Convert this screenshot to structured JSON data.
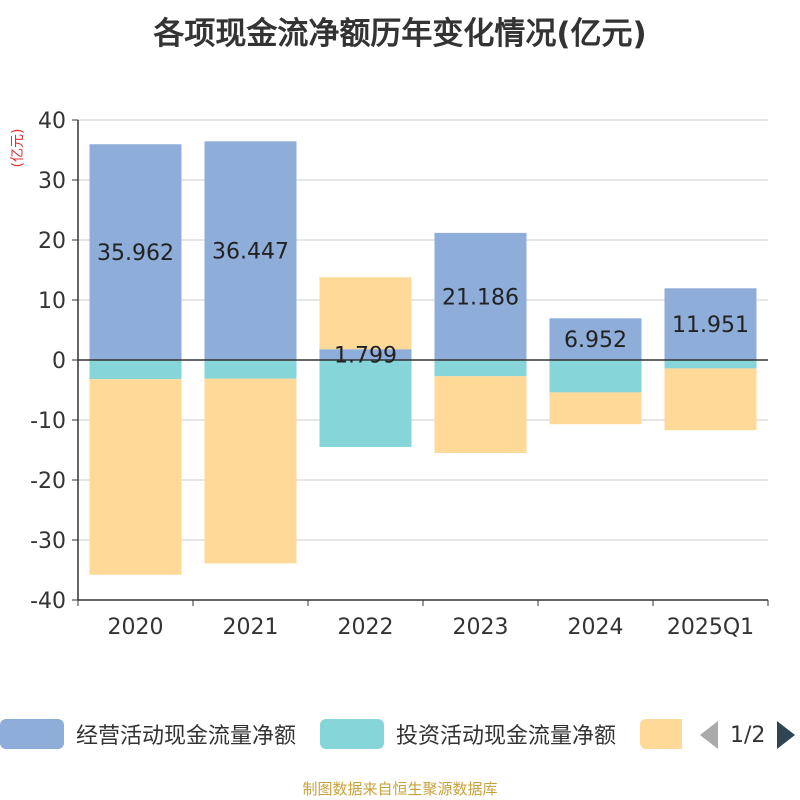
{
  "title": "各项现金流净额历年变化情况(亿元)",
  "source": "制图数据来自恒生聚源数据库",
  "legend": {
    "items": [
      {
        "label": "经营活动现金流量净额",
        "color": "#8eadd9"
      },
      {
        "label": "投资活动现金流量净额",
        "color": "#86d5d8"
      },
      {
        "label": "",
        "color": "#fed998"
      }
    ],
    "page": "1/2"
  },
  "chart_data": {
    "type": "bar",
    "stacked": true,
    "categories": [
      "2020",
      "2021",
      "2022",
      "2023",
      "2024",
      "2025Q1"
    ],
    "ylabel": "(亿元)",
    "ylim": [
      -40,
      40
    ],
    "yticks": [
      40,
      30,
      20,
      10,
      0,
      -10,
      -20,
      -30,
      -40
    ],
    "grid": true,
    "series": [
      {
        "name": "经营活动现金流量净额",
        "color": "#8eadd9",
        "values": [
          35.962,
          36.447,
          1.799,
          21.186,
          6.952,
          11.951
        ],
        "labels": [
          "35.962",
          "36.447",
          "1.799",
          "21.186",
          "6.952",
          "11.951"
        ]
      },
      {
        "name": "投资活动现金流量净额",
        "color": "#86d5d8",
        "values": [
          -3.2,
          -3.1,
          -14.5,
          -2.7,
          -5.4,
          -1.4
        ]
      },
      {
        "color": "#fed998",
        "values": [
          -32.6,
          -30.8,
          12.0,
          -12.8,
          -5.3,
          -10.3
        ]
      }
    ]
  }
}
